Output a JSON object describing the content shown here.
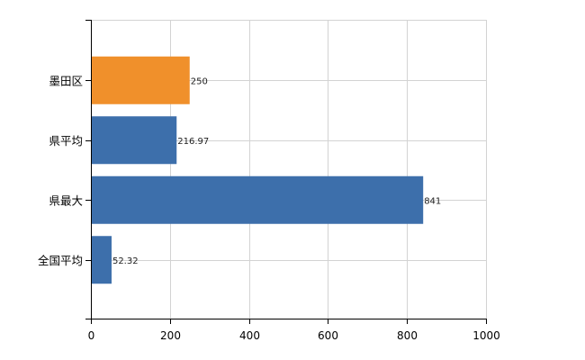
{
  "chart_data": {
    "type": "bar",
    "orientation": "horizontal",
    "categories": [
      "墨田区",
      "県平均",
      "県最大",
      "全国平均"
    ],
    "values": [
      250,
      216.97,
      841,
      52.32
    ],
    "value_labels": [
      "250",
      "216.97",
      "841",
      "52.32"
    ],
    "bar_colors": [
      "#f0902b",
      "#3d6fab",
      "#3d6fab",
      "#3d6fab"
    ],
    "xlim": [
      0,
      1000
    ],
    "x_ticks": [
      0,
      200,
      400,
      600,
      800,
      1000
    ],
    "x_tick_labels": [
      "0",
      "200",
      "400",
      "600",
      "800",
      "1000"
    ],
    "grid": true,
    "title": "",
    "xlabel": "",
    "ylabel": "",
    "colors": {
      "highlight": "#f0902b",
      "default": "#3d6fab",
      "grid": "#d3d3d3"
    }
  }
}
